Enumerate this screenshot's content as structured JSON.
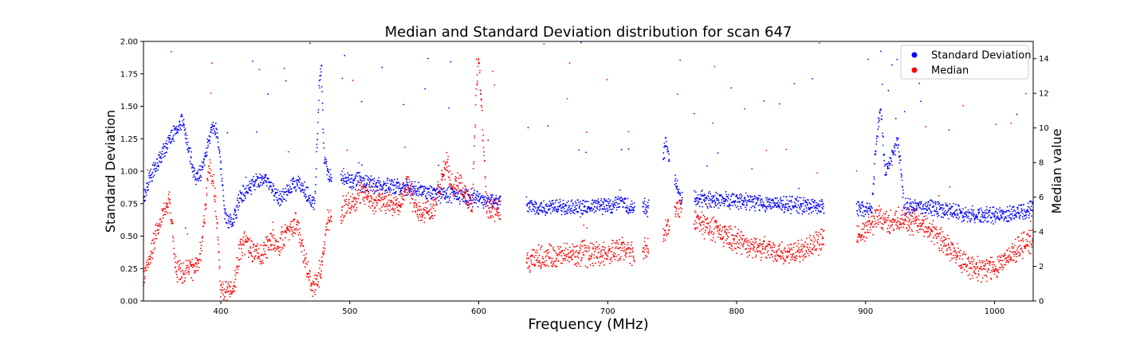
{
  "chart_data": {
    "type": "scatter",
    "title": "Median and Standard Deviation distribution for scan 647",
    "xlabel": "Frequency (MHz)",
    "ylabel_left": "Standard Deviation",
    "ylabel_right": "Median value",
    "xlim": [
      340,
      1030
    ],
    "ylim_left": [
      0,
      2.0
    ],
    "ylim_right": [
      0,
      15
    ],
    "x_ticks": [
      400,
      500,
      600,
      700,
      800,
      900,
      1000
    ],
    "y_ticks_left": [
      "0.00",
      "0.25",
      "0.50",
      "0.75",
      "1.00",
      "1.25",
      "1.50",
      "1.75",
      "2.00"
    ],
    "y_ticks_right": [
      0,
      2,
      4,
      6,
      8,
      10,
      12,
      14
    ],
    "grid": false,
    "legend_position": "top-right",
    "series": [
      {
        "name": "Standard Deviation",
        "axis": "left",
        "color": "#0000ff",
        "profile": [
          [
            340,
            0.8
          ],
          [
            345,
            0.95
          ],
          [
            350,
            1.05
          ],
          [
            358,
            1.2
          ],
          [
            370,
            1.4
          ],
          [
            380,
            0.95
          ],
          [
            385,
            1.0
          ],
          [
            390,
            1.2
          ],
          [
            393,
            1.35
          ],
          [
            397,
            1.3
          ],
          [
            400,
            1.05
          ],
          [
            403,
            0.7
          ],
          [
            406,
            0.6
          ],
          [
            410,
            0.62
          ],
          [
            415,
            0.8
          ],
          [
            420,
            0.85
          ],
          [
            425,
            0.9
          ],
          [
            430,
            0.92
          ],
          [
            435,
            0.95
          ],
          [
            440,
            0.85
          ],
          [
            445,
            0.78
          ],
          [
            450,
            0.82
          ],
          [
            455,
            0.88
          ],
          [
            460,
            0.9
          ],
          [
            465,
            0.85
          ],
          [
            470,
            0.78
          ],
          [
            473,
            0.75
          ],
          [
            476,
            1.6
          ],
          [
            478,
            1.85
          ],
          [
            480,
            1.1
          ],
          [
            484,
            0.95
          ],
          [
            640,
            0.73
          ],
          [
            650,
            0.72
          ],
          [
            660,
            0.74
          ],
          [
            670,
            0.72
          ],
          [
            680,
            0.71
          ],
          [
            690,
            0.73
          ],
          [
            700,
            0.74
          ],
          [
            705,
            0.72
          ],
          [
            710,
            0.8
          ],
          [
            715,
            0.72
          ],
          [
            720,
            0.72
          ],
          [
            728,
            0.73
          ],
          [
            731,
            0.72
          ],
          [
            745,
            1.2
          ],
          [
            756,
            0.8
          ],
          [
            895,
            0.71
          ],
          [
            900,
            0.7
          ],
          [
            905,
            0.7
          ],
          [
            908,
            1.2
          ],
          [
            912,
            1.5
          ],
          [
            915,
            1.0
          ],
          [
            920,
            1.1
          ],
          [
            925,
            1.25
          ],
          [
            930,
            0.73
          ],
          [
            940,
            0.72
          ],
          [
            950,
            0.72
          ],
          [
            960,
            0.7
          ],
          [
            970,
            0.69
          ],
          [
            980,
            0.67
          ],
          [
            990,
            0.66
          ],
          [
            1000,
            0.66
          ],
          [
            1010,
            0.67
          ],
          [
            1020,
            0.69
          ],
          [
            1030,
            0.72
          ]
        ]
      },
      {
        "name": "Median",
        "axis": "right",
        "color": "#ff0000",
        "profile": [
          [
            340,
            1.5
          ],
          [
            345,
            2.5
          ],
          [
            350,
            4.0
          ],
          [
            355,
            5.0
          ],
          [
            360,
            6.0
          ],
          [
            365,
            2.0
          ],
          [
            370,
            1.5
          ],
          [
            375,
            2.0
          ],
          [
            380,
            1.8
          ],
          [
            385,
            3.0
          ],
          [
            388,
            5.5
          ],
          [
            391,
            8.0
          ],
          [
            394,
            7.0
          ],
          [
            397,
            4.5
          ],
          [
            400,
            0.6
          ],
          [
            405,
            0.5
          ],
          [
            410,
            0.8
          ],
          [
            415,
            3.0
          ],
          [
            420,
            3.5
          ],
          [
            425,
            2.8
          ],
          [
            430,
            2.7
          ],
          [
            435,
            3.0
          ],
          [
            440,
            3.5
          ],
          [
            445,
            3.2
          ],
          [
            450,
            3.8
          ],
          [
            455,
            4.3
          ],
          [
            460,
            4.5
          ],
          [
            465,
            2.5
          ],
          [
            470,
            1.0
          ],
          [
            473,
            0.8
          ],
          [
            476,
            1.5
          ],
          [
            479,
            2.5
          ],
          [
            483,
            4.8
          ],
          [
            486,
            4.5
          ],
          [
            490,
            3.0
          ],
          [
            495,
            5.5
          ],
          [
            500,
            5.5
          ],
          [
            505,
            6.0
          ],
          [
            510,
            6.3
          ],
          [
            515,
            6.0
          ],
          [
            520,
            5.8
          ],
          [
            525,
            5.7
          ],
          [
            530,
            5.6
          ],
          [
            540,
            5.8
          ],
          [
            545,
            7.0
          ],
          [
            550,
            5.5
          ],
          [
            555,
            5.2
          ],
          [
            560,
            5.3
          ],
          [
            565,
            5.2
          ],
          [
            575,
            8.0
          ],
          [
            580,
            6.5
          ],
          [
            585,
            7.0
          ],
          [
            590,
            6.0
          ],
          [
            595,
            5.5
          ],
          [
            598,
            12.0
          ],
          [
            600,
            14.0
          ],
          [
            603,
            10.0
          ],
          [
            606,
            5.5
          ],
          [
            610,
            5.2
          ],
          [
            615,
            5.2
          ],
          [
            620,
            5.0
          ],
          [
            630,
            4.0
          ],
          [
            637,
            2.0
          ],
          [
            645,
            2.5
          ],
          [
            660,
            2.6
          ],
          [
            680,
            2.7
          ],
          [
            700,
            2.8
          ],
          [
            715,
            3.0
          ],
          [
            720,
            2.5
          ],
          [
            728,
            3.0
          ],
          [
            731,
            2.9
          ],
          [
            745,
            4.0
          ],
          [
            755,
            5.5
          ],
          [
            770,
            4.6
          ],
          [
            780,
            4.2
          ],
          [
            790,
            3.8
          ],
          [
            800,
            3.5
          ],
          [
            810,
            3.2
          ],
          [
            820,
            3.0
          ],
          [
            830,
            2.9
          ],
          [
            840,
            2.8
          ],
          [
            850,
            3.0
          ],
          [
            860,
            3.2
          ],
          [
            867,
            3.5
          ],
          [
            895,
            3.8
          ],
          [
            900,
            4.0
          ],
          [
            905,
            4.5
          ],
          [
            910,
            5.0
          ],
          [
            915,
            4.5
          ],
          [
            920,
            4.6
          ],
          [
            930,
            4.7
          ],
          [
            940,
            4.5
          ],
          [
            950,
            4.2
          ],
          [
            960,
            3.5
          ],
          [
            970,
            2.7
          ],
          [
            980,
            2.0
          ],
          [
            990,
            1.8
          ],
          [
            1000,
            2.0
          ],
          [
            1010,
            2.5
          ],
          [
            1020,
            3.2
          ],
          [
            1030,
            3.5
          ]
        ]
      }
    ],
    "gaps_mhz": [
      [
        486,
        493
      ],
      [
        617,
        637
      ],
      [
        721,
        727
      ],
      [
        732,
        743
      ],
      [
        748,
        752
      ],
      [
        758,
        767
      ],
      [
        868,
        893
      ]
    ]
  }
}
